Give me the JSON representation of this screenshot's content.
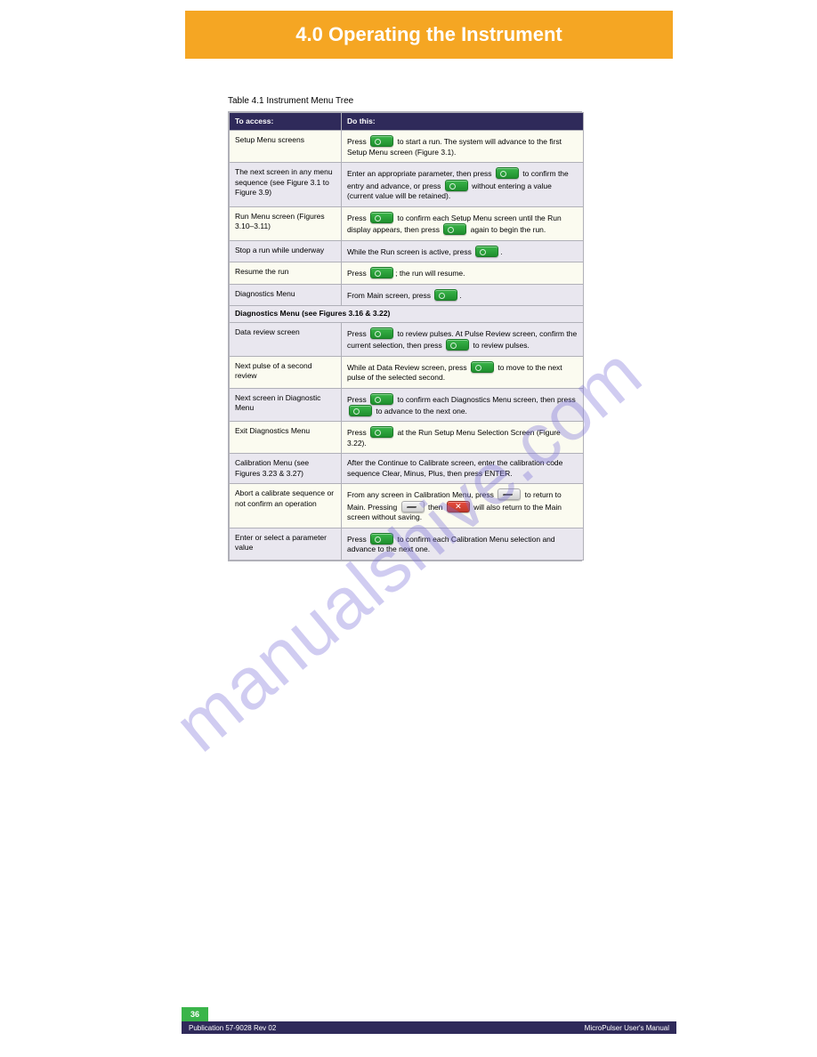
{
  "colors": {
    "banner_bg": "#f5a623",
    "banner_fg": "#ffffff",
    "header_bg": "#2f2a5a",
    "header_fg": "#ffffff",
    "row_alt_bg": "#fbfbf0",
    "row_norm_bg": "#e9e7ef",
    "border": "#b0b0b8",
    "btn_green": "#3ab54a",
    "btn_grey": "#d0d0d0",
    "btn_red": "#e84c3d",
    "watermark": "#7a6fd8"
  },
  "banner": {
    "title": "4.0 Operating the Instrument"
  },
  "table": {
    "caption": "Table 4.1  Instrument Menu Tree",
    "headers": [
      "To access:",
      "Do this:"
    ],
    "rows": [
      {
        "style": "alt",
        "left": "Setup Menu screens",
        "right_parts": [
          {
            "t": "Press "
          },
          {
            "btn": "green"
          },
          {
            "t": " to start a run. The system will advance to the first Setup Menu screen (Figure 3.1)."
          }
        ]
      },
      {
        "style": "norm",
        "left": "The next screen in any menu sequence (see Figure 3.1 to Figure 3.9)",
        "right_parts": [
          {
            "t": "Enter an appropriate parameter, then press "
          },
          {
            "btn": "green"
          },
          {
            "t": " to confirm the entry and advance, or press "
          },
          {
            "btn": "green"
          },
          {
            "t": " without entering a value (current value will be retained)."
          }
        ]
      },
      {
        "style": "alt",
        "left": "Run Menu screen (Figures 3.10–3.11)",
        "right_parts": [
          {
            "t": "Press "
          },
          {
            "btn": "green"
          },
          {
            "t": " to confirm each Setup Menu screen until the Run display appears, then press "
          },
          {
            "btn": "green"
          },
          {
            "t": " again to begin the run."
          }
        ]
      },
      {
        "style": "norm",
        "left": "Stop a run while underway",
        "right_parts": [
          {
            "t": "While the Run screen is active, press "
          },
          {
            "btn": "green"
          },
          {
            "t": "."
          }
        ]
      },
      {
        "style": "alt",
        "left": "Resume the run",
        "right_parts": [
          {
            "t": "Press "
          },
          {
            "btn": "green"
          },
          {
            "t": "; the run will resume."
          }
        ]
      },
      {
        "style": "norm",
        "left": "Diagnostics Menu",
        "right_parts": [
          {
            "t": "From Main screen, press "
          },
          {
            "btn": "green"
          },
          {
            "t": "."
          }
        ]
      },
      {
        "style": "sec",
        "section": true,
        "left": "Diagnostics Menu (see Figures 3.16 & 3.22)",
        "right": ""
      },
      {
        "style": "norm",
        "left": "Data review screen",
        "right_parts": [
          {
            "t": "Press "
          },
          {
            "btn": "green"
          },
          {
            "t": " to review pulses. At Pulse Review screen, confirm the current selection, then press "
          },
          {
            "btn": "green"
          },
          {
            "t": " to review pulses."
          }
        ]
      },
      {
        "style": "alt",
        "left": "Next pulse of a second review",
        "right_parts": [
          {
            "t": "While at Data Review screen, press "
          },
          {
            "btn": "green"
          },
          {
            "t": " to move to the next pulse of the selected second."
          }
        ]
      },
      {
        "style": "norm",
        "left": "Next screen in Diagnostic Menu",
        "right_parts": [
          {
            "t": "Press "
          },
          {
            "btn": "green"
          },
          {
            "t": " to confirm each Diagnostics Menu screen, then press "
          },
          {
            "btn": "green"
          },
          {
            "t": " to advance to the next one."
          }
        ]
      },
      {
        "style": "alt",
        "left": "Exit Diagnostics Menu",
        "right_parts": [
          {
            "t": "Press "
          },
          {
            "btn": "green"
          },
          {
            "t": " at the Run Setup Menu Selection Screen (Figure 3.22)."
          }
        ]
      },
      {
        "style": "norm",
        "left": "Calibration Menu (see Figures 3.23 & 3.27)",
        "right_parts": [
          {
            "t": "After the Continue to Calibrate screen, enter the calibration code sequence Clear, Minus, Plus, then press ENTER."
          }
        ]
      },
      {
        "style": "alt",
        "left": "Abort a calibrate sequence or not confirm an operation",
        "right_parts": [
          {
            "t": "From any screen in Calibration Menu, press "
          },
          {
            "btn": "grey"
          },
          {
            "t": " to return to  Main. Pressing "
          },
          {
            "btn": "grey"
          },
          {
            "t": " then "
          },
          {
            "btn": "red"
          },
          {
            "t": " will also return to the Main screen without saving."
          }
        ]
      },
      {
        "style": "norm",
        "left": "Enter or select a parameter value",
        "right_parts": [
          {
            "t": "Press "
          },
          {
            "btn": "green"
          },
          {
            "t": " to confirm each Calibration Menu selection and advance to the next one."
          }
        ]
      }
    ]
  },
  "watermark": "manualshive.com",
  "footer": {
    "page": "36",
    "left": "Publication 57-9028  Rev 02",
    "right": "MicroPulser User's Manual"
  }
}
